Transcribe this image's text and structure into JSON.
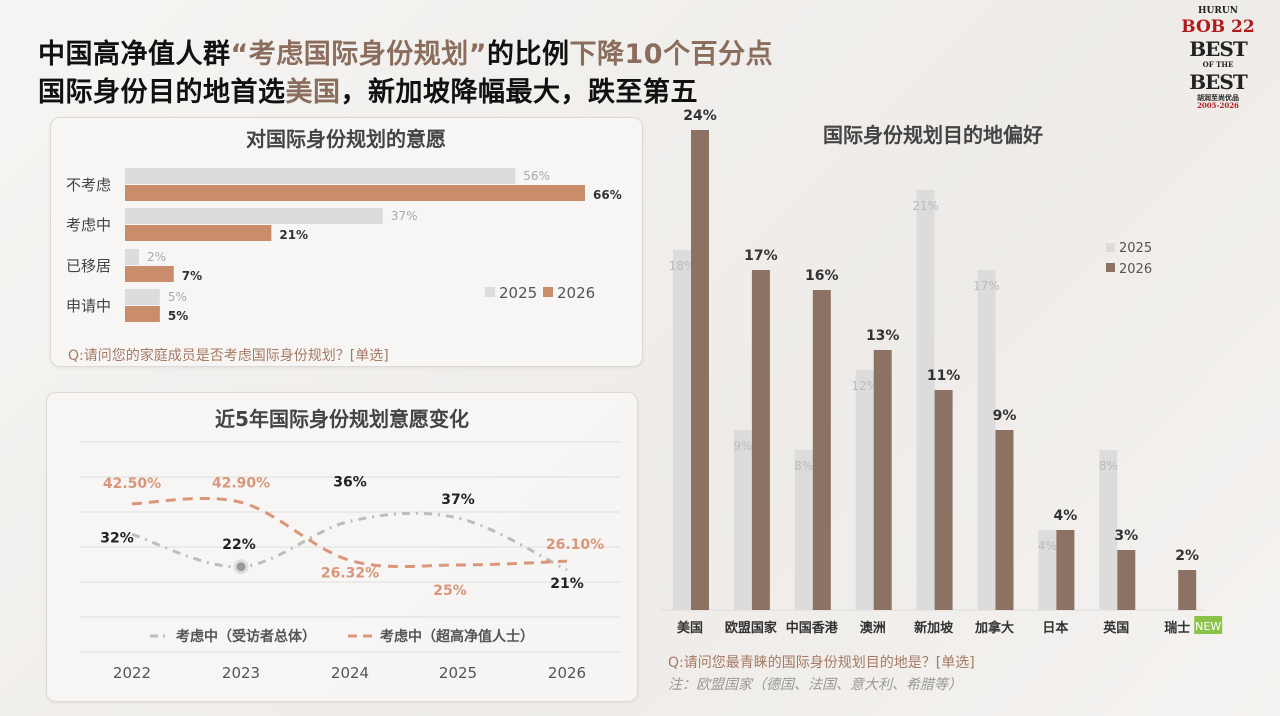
{
  "header": {
    "line1": {
      "a": "中国高净值人群",
      "b": "“考虑国际身份规划”",
      "c": "的比例",
      "d": "下降10个百分点"
    },
    "line2": {
      "a": "国际身份目的地首选",
      "b": "美国",
      "c": "，新加坡降幅最大，跌至第五"
    }
  },
  "logo": {
    "brand": "HURUN",
    "bob": "BOB 22",
    "best": "BEST",
    "of_the": "OF THE",
    "best2": "BEST",
    "cn": "胡润至尚优品",
    "years": "2005-2026"
  },
  "colors": {
    "c2025": "#dcdcdc",
    "c2026_left": "#c98d6c",
    "c2026_right": "#8c7262",
    "line_overall": "#bdbdbd",
    "line_hnw": "#d9967a",
    "accent": "#8a6d5c",
    "new_badge": "#8bc34a"
  },
  "chart_data": [
    {
      "type": "bar",
      "orientation": "horizontal",
      "title": "对国际身份规划的意愿",
      "categories": [
        "不考虑",
        "考虑中",
        "已移居",
        "申请中"
      ],
      "series": [
        {
          "name": "2025",
          "values": [
            56,
            37,
            2,
            5
          ],
          "labels": [
            "56%",
            "37%",
            "2%",
            "5%"
          ]
        },
        {
          "name": "2026",
          "values": [
            66,
            21,
            7,
            5
          ],
          "labels": [
            "66%",
            "21%",
            "7%",
            "5%"
          ]
        }
      ],
      "legend": "right",
      "question": "Q:请问您的家庭成员是否考虑国际身份规划？[单选]"
    },
    {
      "type": "line",
      "title": "近5年国际身份规划意愿变化",
      "categories": [
        "2022",
        "2023",
        "2024",
        "2025",
        "2026"
      ],
      "series": [
        {
          "name": "考虑中（受访者总体）",
          "values": [
            32,
            22,
            36,
            37,
            21
          ],
          "labels": [
            "32%",
            "22%",
            "36%",
            "37%",
            "21%"
          ]
        },
        {
          "name": "考虑中（超高净值人士）",
          "values": [
            42.5,
            42.9,
            26.32,
            25,
            26.1
          ],
          "labels": [
            "42.50%",
            "42.90%",
            "26.32%",
            "25%",
            "26.10%"
          ]
        }
      ],
      "legend": "bottom",
      "grid": true
    },
    {
      "type": "bar",
      "title": "国际身份规划目的地偏好",
      "categories": [
        "美国",
        "欧盟国家",
        "中国香港",
        "澳洲",
        "新加坡",
        "加拿大",
        "日本",
        "英国",
        "瑞士"
      ],
      "series": [
        {
          "name": "2025",
          "values": [
            18,
            9,
            8,
            12,
            21,
            17,
            4,
            8,
            null
          ],
          "labels": [
            "18%",
            "9%",
            "8%",
            "12%",
            "21%",
            "17%",
            "4%",
            "8%",
            ""
          ]
        },
        {
          "name": "2026",
          "values": [
            24,
            17,
            16,
            13,
            11,
            9,
            4,
            3,
            2
          ],
          "labels": [
            "24%",
            "17%",
            "16%",
            "13%",
            "11%",
            "9%",
            "4%",
            "3%",
            "2%"
          ]
        }
      ],
      "legend": "right",
      "badge": "NEW",
      "question": "Q:请问您最青睐的国际身份规划目的地是？[单选]",
      "note": "注：欧盟国家（德国、法国、意大利、希腊等）"
    }
  ]
}
